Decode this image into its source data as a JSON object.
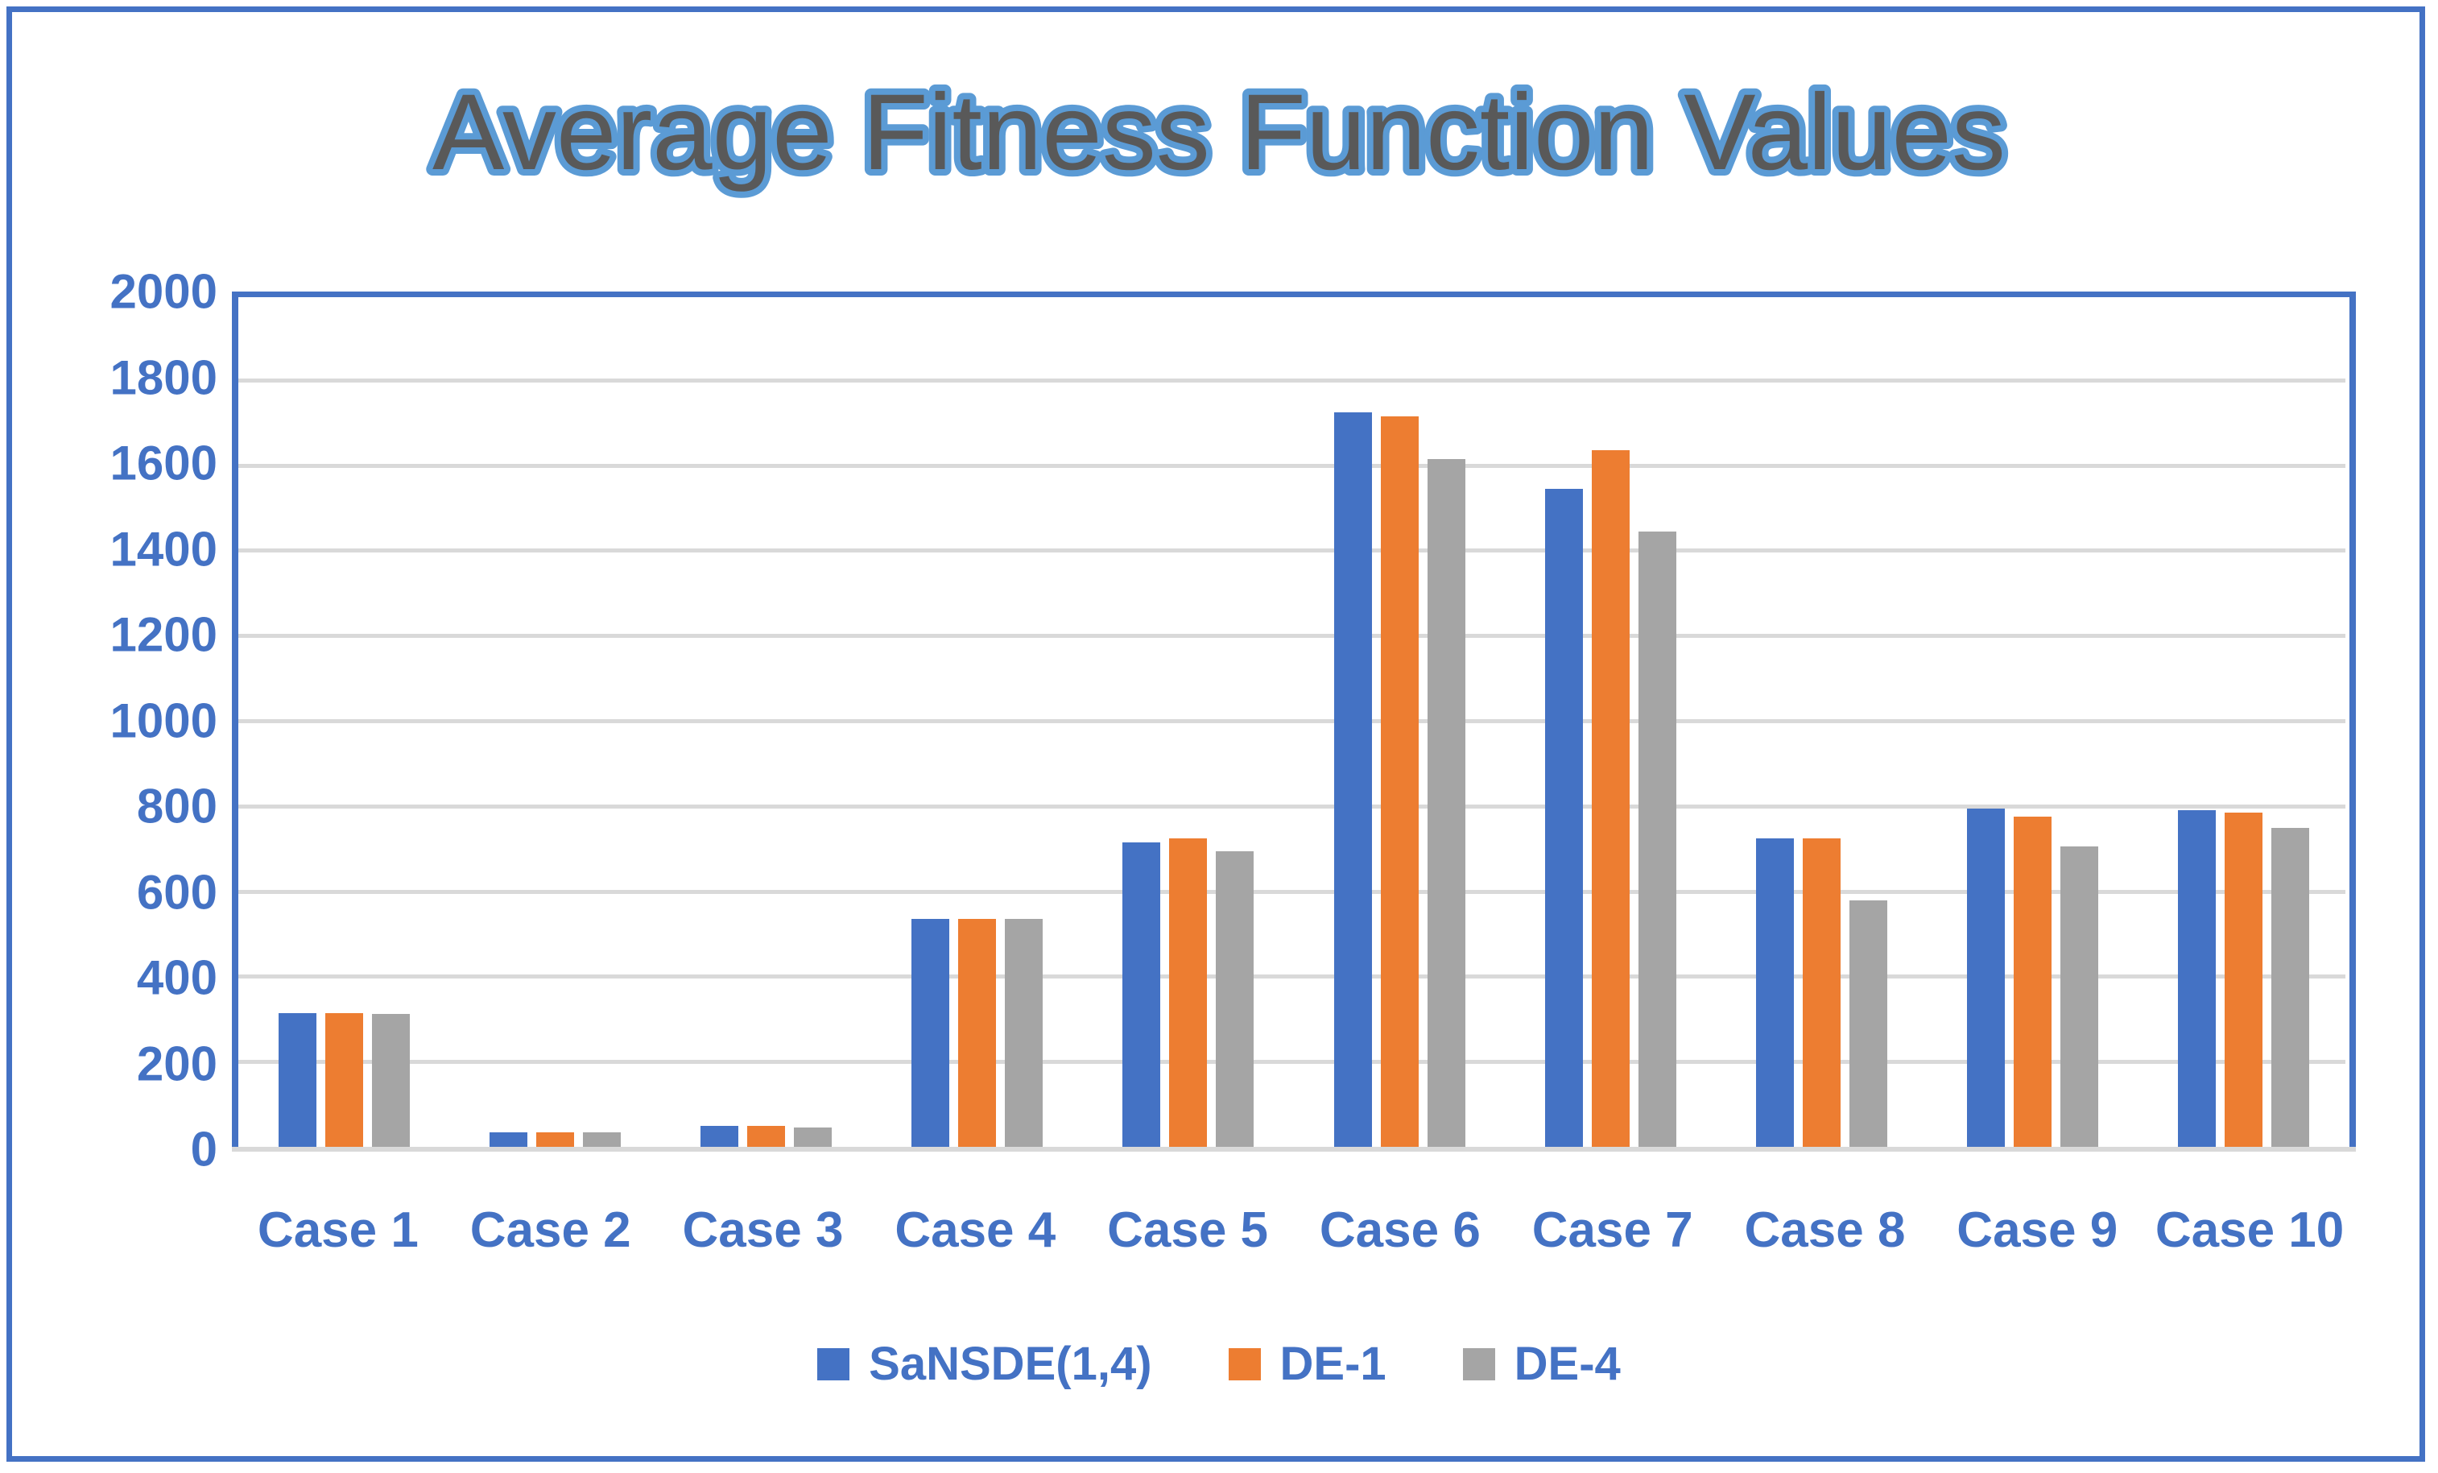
{
  "chart_data": {
    "type": "bar",
    "title": "Average Fitness Function Values",
    "categories": [
      "Case 1",
      "Case 2",
      "Case 3",
      "Case 4",
      "Case 5",
      "Case 6",
      "Case 7",
      "Case 8",
      "Case 9",
      "Case 10"
    ],
    "series": [
      {
        "name": "SaNSDE(1,4)",
        "color": "#4472C4",
        "values": [
          320,
          40,
          55,
          540,
          720,
          1730,
          1550,
          730,
          800,
          795
        ]
      },
      {
        "name": "DE-1",
        "color": "#ED7D31",
        "values": [
          320,
          40,
          55,
          540,
          730,
          1720,
          1640,
          730,
          780,
          790
        ]
      },
      {
        "name": "DE-4",
        "color": "#A5A5A5",
        "values": [
          318,
          40,
          52,
          540,
          700,
          1620,
          1450,
          585,
          710,
          755
        ]
      }
    ],
    "xlabel": "",
    "ylabel": "",
    "ylim": [
      0,
      2000
    ],
    "yticks": [
      0,
      200,
      400,
      600,
      800,
      1000,
      1200,
      1400,
      1600,
      1800,
      2000
    ],
    "grid": "horizontal",
    "legend_position": "bottom"
  },
  "colors": {
    "axis_text": "#4472C4",
    "plot_border": "#4472C4",
    "outer_frame": "#4472C4",
    "gridline": "#D9D9D9",
    "title_fill": "#595959",
    "title_outline": "#5B9BD5"
  }
}
